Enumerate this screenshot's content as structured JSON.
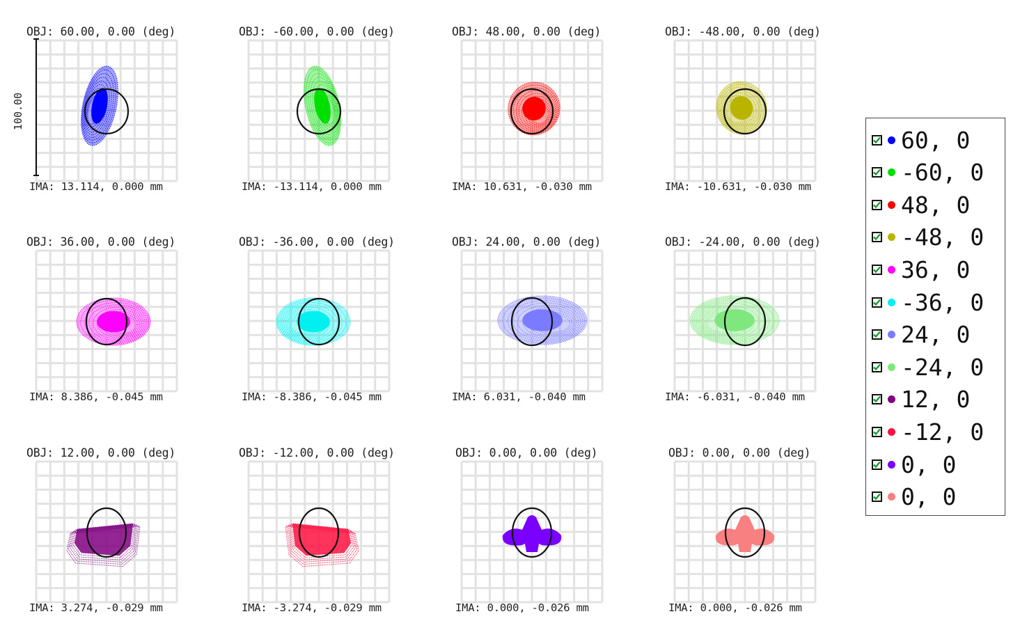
{
  "chart_data": {
    "type": "scatter",
    "subtype": "spot-diagram",
    "scale_label": "100.00",
    "grid": true,
    "fields": [
      {
        "obj": "OBJ: 60.00, 0.00 (deg)",
        "ima": "IMA: 13.114, 0.000 mm",
        "color": "#0000ff",
        "legend": "60, 0"
      },
      {
        "obj": "OBJ: -60.00, 0.00 (deg)",
        "ima": "IMA: -13.114, 0.000 mm",
        "color": "#00e000",
        "legend": "-60, 0"
      },
      {
        "obj": "OBJ: 48.00, 0.00 (deg)",
        "ima": "IMA: 10.631, -0.030 mm",
        "color": "#ff0000",
        "legend": "48, 0"
      },
      {
        "obj": "OBJ: -48.00, 0.00 (deg)",
        "ima": "IMA: -10.631, -0.030 mm",
        "color": "#b8b400",
        "legend": "-48, 0"
      },
      {
        "obj": "OBJ: 36.00, 0.00 (deg)",
        "ima": "IMA: 8.386, -0.045 mm",
        "color": "#ff00ff",
        "legend": "36, 0"
      },
      {
        "obj": "OBJ: -36.00, 0.00 (deg)",
        "ima": "IMA: -8.386, -0.045 mm",
        "color": "#00f0f0",
        "legend": "-36, 0"
      },
      {
        "obj": "OBJ: 24.00, 0.00 (deg)",
        "ima": "IMA: 6.031, -0.040 mm",
        "color": "#7b7bff",
        "legend": "24, 0"
      },
      {
        "obj": "OBJ: -24.00, 0.00 (deg)",
        "ima": "IMA: -6.031, -0.040 mm",
        "color": "#7ee87e",
        "legend": "-24, 0"
      },
      {
        "obj": "OBJ: 12.00, 0.00 (deg)",
        "ima": "IMA: 3.274, -0.029 mm",
        "color": "#800080",
        "legend": "12, 0"
      },
      {
        "obj": "OBJ: -12.00, 0.00 (deg)",
        "ima": "IMA: -3.274, -0.029 mm",
        "color": "#ff1040",
        "legend": "-12, 0"
      },
      {
        "obj": "OBJ: 0.00, 0.00 (deg)",
        "ima": "IMA: 0.000, -0.026 mm",
        "color": "#7a00ff",
        "legend": "0, 0"
      },
      {
        "obj": "OBJ: 0.00, 0.00 (deg)",
        "ima": "IMA: 0.000, -0.026 mm",
        "color": "#f88080",
        "legend": "0, 0"
      }
    ]
  }
}
